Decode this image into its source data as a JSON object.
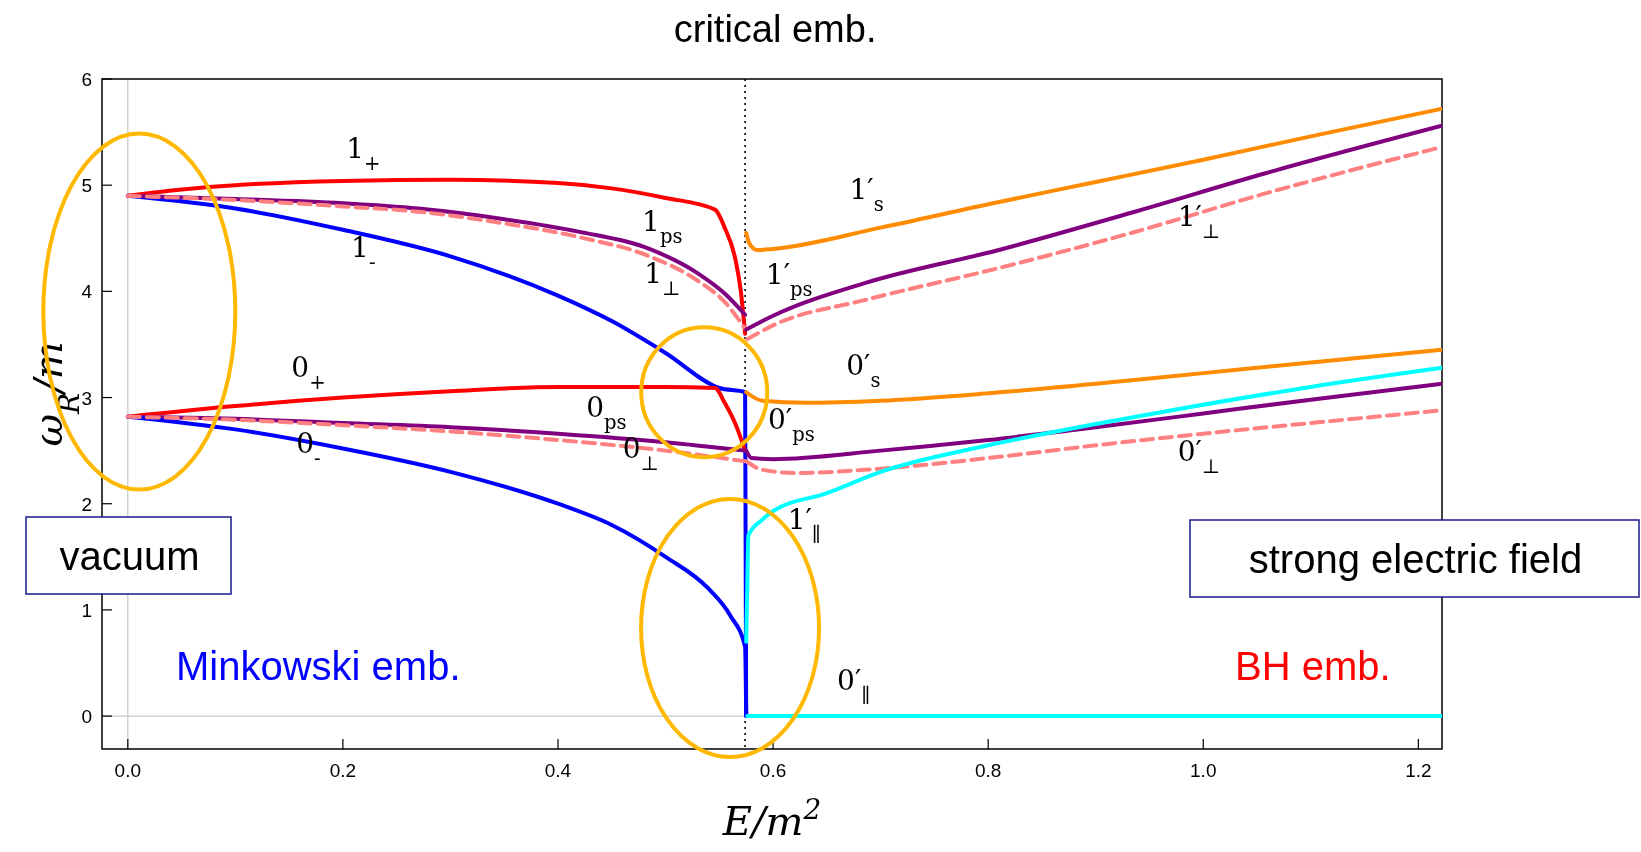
{
  "chart_data": {
    "type": "line",
    "title": null,
    "xlabel": "E/m$^{2}$",
    "ylabel": "ω$_{R}$/m",
    "xlim": [
      -0.024,
      1.222
    ],
    "ylim": [
      -0.31,
      6
    ],
    "xticks": [
      {
        "value": 0,
        "label": "0.0"
      },
      0.2,
      0.4,
      0.6,
      0.8,
      {
        "value": 1,
        "label": "1.0"
      },
      1.2
    ],
    "yticks": [
      0,
      1,
      2,
      3,
      4,
      5,
      6
    ],
    "ref_lines": [
      {
        "axis": "x",
        "value": 0,
        "label": null,
        "color": "#c8c8c8",
        "line_style": "solid"
      },
      {
        "axis": "y",
        "value": 0,
        "label": null,
        "color": "#c8c8c8",
        "line_style": "solid"
      },
      {
        "axis": "x",
        "value": 0.574,
        "label": "critical emb.",
        "color": "#000000",
        "line_style": "dotted"
      }
    ],
    "annotations": [
      "vacuum",
      "strong electric field",
      "Minkowski emb.",
      "BH emb."
    ],
    "series": [
      {
        "name": "1$_{+}$",
        "color": "#ff0000",
        "line_style": "solid",
        "x": [
          0,
          0.05,
          0.1,
          0.2,
          0.3,
          0.4,
          0.45,
          0.5,
          0.546,
          0.555,
          0.565,
          0.57,
          0.574
        ],
        "values": [
          4.9,
          4.96,
          5.0,
          5.04,
          5.05,
          5.02,
          4.97,
          4.88,
          4.77,
          4.6,
          4.3,
          4.0,
          3.6
        ]
      },
      {
        "name": "1$_{-}$",
        "color": "#0000ff",
        "line_style": "solid",
        "x": [
          0,
          0.1,
          0.2,
          0.3,
          0.4,
          0.45,
          0.5,
          0.55,
          0.574,
          0.575
        ],
        "values": [
          4.9,
          4.78,
          4.58,
          4.33,
          3.96,
          3.72,
          3.42,
          3.09,
          3.05,
          0
        ]
      },
      {
        "name": "1$_{ps}$",
        "color": "#800080",
        "line_style": "solid",
        "x": [
          0,
          0.1,
          0.2,
          0.27,
          0.35,
          0.42,
          0.485,
          0.53,
          0.555,
          0.574
        ],
        "values": [
          4.9,
          4.87,
          4.83,
          4.78,
          4.68,
          4.56,
          4.4,
          4.17,
          3.98,
          3.78
        ]
      },
      {
        "name": "1$_{⊥}$",
        "color": "#ff8080",
        "line_style": "dashed",
        "x": [
          0,
          0.1,
          0.2,
          0.27,
          0.35,
          0.42,
          0.485,
          0.53,
          0.555,
          0.574
        ],
        "values": [
          4.9,
          4.86,
          4.8,
          4.75,
          4.64,
          4.51,
          4.33,
          4.1,
          3.9,
          3.65
        ]
      },
      {
        "name": "0$_{+}$",
        "color": "#ff0000",
        "line_style": "solid",
        "x": [
          0,
          0.1,
          0.2,
          0.3,
          0.4,
          0.5,
          0.546,
          0.555,
          0.565,
          0.574
        ],
        "values": [
          2.82,
          2.92,
          3.0,
          3.06,
          3.1,
          3.1,
          3.09,
          2.95,
          2.75,
          2.5
        ]
      },
      {
        "name": "0$_{ps}$",
        "color": "#800080",
        "line_style": "solid",
        "x": [
          0,
          0.1,
          0.2,
          0.3,
          0.4,
          0.5,
          0.574
        ],
        "values": [
          2.82,
          2.8,
          2.76,
          2.72,
          2.66,
          2.58,
          2.5
        ]
      },
      {
        "name": "0$_{-}$",
        "color": "#0000ff",
        "line_style": "solid",
        "x": [
          0,
          0.1,
          0.2,
          0.3,
          0.4,
          0.45,
          0.5,
          0.54,
          0.56,
          0.574,
          0.575
        ],
        "values": [
          2.82,
          2.7,
          2.52,
          2.3,
          2.0,
          1.8,
          1.5,
          1.2,
          0.95,
          0.65,
          0
        ]
      },
      {
        "name": "0$_{⊥}$",
        "color": "#ff8080",
        "line_style": "dashed",
        "x": [
          0,
          0.1,
          0.2,
          0.3,
          0.4,
          0.5,
          0.574
        ],
        "values": [
          2.82,
          2.79,
          2.74,
          2.68,
          2.6,
          2.5,
          2.4
        ]
      },
      {
        "name": "1′$_{s}$",
        "color": "#ff8c00",
        "line_style": "solid",
        "x": [
          0.575,
          0.578,
          0.585,
          0.6,
          0.7,
          0.8,
          0.9,
          1.0,
          1.1,
          1.222
        ],
        "values": [
          4.55,
          4.45,
          4.39,
          4.4,
          4.6,
          4.82,
          5.03,
          5.24,
          5.46,
          5.72
        ]
      },
      {
        "name": "1′$_{ps}$",
        "color": "#800080",
        "line_style": "solid",
        "x": [
          0.575,
          0.6,
          0.686,
          0.81,
          0.933,
          1.057,
          1.222
        ],
        "values": [
          3.64,
          3.77,
          4.08,
          4.39,
          4.74,
          5.11,
          5.56
        ]
      },
      {
        "name": "1′$_{⊥}$",
        "color": "#ff8080",
        "line_style": "dashed",
        "x": [
          0.576,
          0.6,
          0.686,
          0.81,
          0.933,
          1.057,
          1.222
        ],
        "values": [
          3.55,
          3.68,
          3.92,
          4.22,
          4.55,
          4.92,
          5.36
        ]
      },
      {
        "name": "0′$_{s}$",
        "color": "#ff8c00",
        "line_style": "solid",
        "x": [
          0.575,
          0.59,
          0.63,
          0.7,
          0.8,
          0.9,
          1.0,
          1.1,
          1.222
        ],
        "values": [
          3.05,
          2.97,
          2.95,
          2.97,
          3.04,
          3.13,
          3.23,
          3.33,
          3.45
        ]
      },
      {
        "name": "0′$_{ps}$",
        "color": "#800080",
        "line_style": "solid",
        "x": [
          0.575,
          0.58,
          0.6,
          0.7,
          0.8,
          0.9,
          1.0,
          1.1,
          1.222
        ],
        "values": [
          2.5,
          2.43,
          2.42,
          2.5,
          2.6,
          2.72,
          2.85,
          2.98,
          3.13
        ]
      },
      {
        "name": "0′$_{⊥}$",
        "color": "#ff8080",
        "line_style": "dashed",
        "x": [
          0.575,
          0.59,
          0.62,
          0.7,
          0.8,
          0.9,
          1.0,
          1.1,
          1.222
        ],
        "values": [
          2.4,
          2.32,
          2.29,
          2.33,
          2.43,
          2.55,
          2.66,
          2.76,
          2.88
        ]
      },
      {
        "name": "1′$_{∥}$",
        "color": "#00ffff",
        "line_style": "solid",
        "x": [
          0.575,
          0.576,
          0.577,
          0.59,
          0.6,
          0.65,
          0.7,
          0.8,
          0.9,
          0.976,
          1.1,
          1.222
        ],
        "values": [
          0.7,
          1.2,
          1.7,
          1.85,
          1.93,
          2.1,
          2.3,
          2.55,
          2.75,
          2.89,
          3.1,
          3.28
        ]
      },
      {
        "name": "0′$_{∥}$",
        "color": "#00ffff",
        "line_style": "solid",
        "x": [
          0.576,
          0.8,
          1.0,
          1.222
        ],
        "values": [
          0,
          0,
          0,
          0
        ]
      }
    ]
  }
}
